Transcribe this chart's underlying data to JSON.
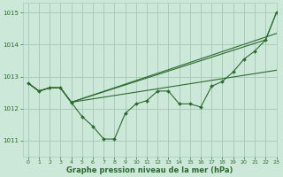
{
  "bg_color": "#cce8d8",
  "grid_color": "#aaccbb",
  "line_color": "#2d6a2d",
  "marker_color": "#2d6a2d",
  "xlabel": "Graphe pression niveau de la mer (hPa)",
  "xlim": [
    -0.5,
    23
  ],
  "ylim": [
    1010.5,
    1015.3
  ],
  "yticks": [
    1011,
    1012,
    1013,
    1014,
    1015
  ],
  "xticks": [
    0,
    1,
    2,
    3,
    4,
    5,
    6,
    7,
    8,
    9,
    10,
    11,
    12,
    13,
    14,
    15,
    16,
    17,
    18,
    19,
    20,
    21,
    22,
    23
  ],
  "line1_x": [
    0,
    1,
    2,
    3,
    4,
    5,
    6,
    7,
    8,
    9,
    10,
    11,
    12,
    13,
    14,
    15,
    16,
    17,
    18,
    19,
    20,
    21,
    22,
    23
  ],
  "line1_y": [
    1012.8,
    1012.55,
    1012.65,
    1012.65,
    1012.2,
    1011.75,
    1011.45,
    1011.05,
    1011.05,
    1011.85,
    1012.15,
    1012.25,
    1012.55,
    1012.55,
    1012.15,
    1012.15,
    1012.05,
    1012.7,
    1012.85,
    1013.15,
    1013.55,
    1013.8,
    1014.15,
    1015.0
  ],
  "line1_marker_x": [
    0,
    1,
    2,
    3,
    4,
    5,
    6,
    7,
    8,
    9,
    10,
    11,
    12,
    13,
    14,
    15,
    16,
    17,
    18,
    19,
    20,
    21,
    22,
    23
  ],
  "line2_x": [
    0,
    1,
    2,
    3,
    4,
    22,
    23
  ],
  "line2_y": [
    1012.8,
    1012.55,
    1012.65,
    1012.65,
    1012.2,
    1014.15,
    1015.0
  ],
  "line3_x": [
    0,
    1,
    2,
    3,
    4,
    23
  ],
  "line3_y": [
    1012.8,
    1012.55,
    1012.65,
    1012.65,
    1012.2,
    1013.2
  ],
  "line4_x": [
    0,
    1,
    2,
    3,
    4,
    23
  ],
  "line4_y": [
    1012.8,
    1012.55,
    1012.65,
    1012.65,
    1012.2,
    1014.35
  ]
}
